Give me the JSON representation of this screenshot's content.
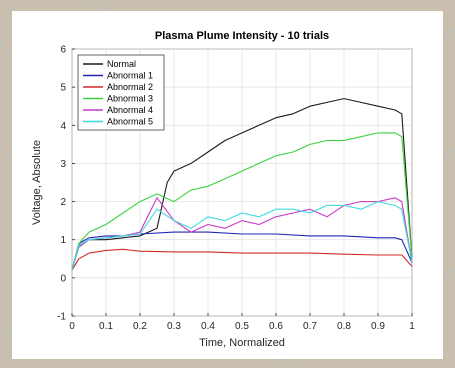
{
  "colors": {
    "background": "#c9bfae",
    "series": {
      "Normal": "#1a1a1a",
      "Abnormal 1": "#2323b4",
      "Abnormal 2": "#d42a2a",
      "Abnormal 3": "#3cd23c",
      "Abnormal 4": "#c83cc8",
      "Abnormal 5": "#3cdcdc"
    }
  },
  "chart_data": {
    "type": "line",
    "title": "Plasma Plume Intensity - 10 trials",
    "xlabel": "Time, Normalized",
    "ylabel": "Voltage, Absolute",
    "xlim": [
      0,
      1
    ],
    "ylim": [
      -1,
      6
    ],
    "xticks": [
      "0",
      "0.1",
      "0.2",
      "0.3",
      "0.4",
      "0.5",
      "0.6",
      "0.7",
      "0.8",
      "0.9",
      "1"
    ],
    "yticks": [
      "-1",
      "0",
      "1",
      "2",
      "3",
      "4",
      "5",
      "6"
    ],
    "grid": true,
    "legend_position": "top-left",
    "series": [
      {
        "name": "Normal",
        "x": [
          0,
          0.02,
          0.05,
          0.1,
          0.15,
          0.2,
          0.25,
          0.28,
          0.3,
          0.35,
          0.4,
          0.45,
          0.5,
          0.55,
          0.6,
          0.65,
          0.7,
          0.75,
          0.8,
          0.85,
          0.9,
          0.95,
          0.97,
          1.0
        ],
        "y": [
          0.2,
          0.85,
          1.0,
          1.0,
          1.05,
          1.1,
          1.3,
          2.5,
          2.8,
          3.0,
          3.3,
          3.6,
          3.8,
          4.0,
          4.2,
          4.3,
          4.5,
          4.6,
          4.7,
          4.6,
          4.5,
          4.4,
          4.3,
          0.5
        ]
      },
      {
        "name": "Abnormal 1",
        "x": [
          0,
          0.02,
          0.05,
          0.1,
          0.15,
          0.2,
          0.3,
          0.4,
          0.5,
          0.6,
          0.7,
          0.8,
          0.9,
          0.95,
          0.97,
          1.0
        ],
        "y": [
          0.2,
          0.9,
          1.05,
          1.1,
          1.1,
          1.15,
          1.2,
          1.2,
          1.15,
          1.15,
          1.1,
          1.1,
          1.05,
          1.05,
          1.0,
          0.4
        ]
      },
      {
        "name": "Abnormal 2",
        "x": [
          0,
          0.02,
          0.05,
          0.1,
          0.15,
          0.2,
          0.3,
          0.4,
          0.5,
          0.6,
          0.7,
          0.8,
          0.9,
          0.95,
          0.97,
          1.0
        ],
        "y": [
          0.2,
          0.5,
          0.65,
          0.72,
          0.75,
          0.7,
          0.68,
          0.68,
          0.65,
          0.65,
          0.65,
          0.62,
          0.6,
          0.6,
          0.6,
          0.3
        ]
      },
      {
        "name": "Abnormal 3",
        "x": [
          0,
          0.02,
          0.05,
          0.1,
          0.15,
          0.2,
          0.25,
          0.3,
          0.35,
          0.4,
          0.45,
          0.5,
          0.55,
          0.6,
          0.65,
          0.7,
          0.75,
          0.8,
          0.85,
          0.9,
          0.95,
          0.97,
          1.0
        ],
        "y": [
          0.2,
          0.9,
          1.2,
          1.4,
          1.7,
          2.0,
          2.2,
          2.0,
          2.3,
          2.4,
          2.6,
          2.8,
          3.0,
          3.2,
          3.3,
          3.5,
          3.6,
          3.6,
          3.7,
          3.8,
          3.8,
          3.7,
          0.5
        ]
      },
      {
        "name": "Abnormal 4",
        "x": [
          0,
          0.02,
          0.05,
          0.1,
          0.15,
          0.2,
          0.25,
          0.3,
          0.35,
          0.4,
          0.45,
          0.5,
          0.55,
          0.6,
          0.65,
          0.7,
          0.75,
          0.8,
          0.85,
          0.9,
          0.95,
          0.97,
          1.0
        ],
        "y": [
          0.2,
          0.8,
          1.0,
          1.05,
          1.1,
          1.2,
          2.1,
          1.5,
          1.2,
          1.4,
          1.3,
          1.5,
          1.4,
          1.6,
          1.7,
          1.8,
          1.6,
          1.9,
          2.0,
          2.0,
          2.1,
          2.0,
          0.4
        ]
      },
      {
        "name": "Abnormal 5",
        "x": [
          0,
          0.02,
          0.05,
          0.1,
          0.15,
          0.2,
          0.25,
          0.3,
          0.35,
          0.4,
          0.45,
          0.5,
          0.55,
          0.6,
          0.65,
          0.7,
          0.75,
          0.8,
          0.85,
          0.9,
          0.95,
          0.97,
          1.0
        ],
        "y": [
          0.2,
          0.85,
          1.0,
          1.05,
          1.1,
          1.15,
          1.8,
          1.5,
          1.3,
          1.6,
          1.5,
          1.7,
          1.6,
          1.8,
          1.8,
          1.7,
          1.9,
          1.9,
          1.8,
          2.0,
          1.9,
          1.8,
          0.4
        ]
      }
    ]
  }
}
